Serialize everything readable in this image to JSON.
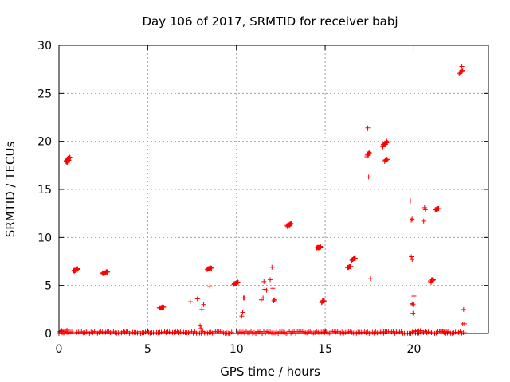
{
  "chart_data": {
    "type": "scatter",
    "title": "Day 106 of 2017, SRMTID for receiver babj",
    "xlabel": "GPS time / hours",
    "ylabel": "SRMTID / TECUs",
    "xlim": [
      0,
      24.2
    ],
    "ylim": [
      0,
      30
    ],
    "xticks": [
      0,
      5,
      10,
      15,
      20
    ],
    "yticks": [
      0,
      5,
      10,
      15,
      20,
      25,
      30
    ],
    "grid": true,
    "marker": "plus",
    "colors": {
      "series": "#ff0000",
      "grid": "#a0a0a0",
      "axis": "#000000"
    },
    "series": [
      {
        "name": "SRMTID",
        "clusters": [
          {
            "x0": 0.4,
            "x1": 0.62,
            "y0": 17.6,
            "y1": 18.5,
            "n": 26
          },
          {
            "x0": 0.82,
            "x1": 1.05,
            "y0": 6.4,
            "y1": 6.8,
            "n": 14
          },
          {
            "x0": 2.45,
            "x1": 2.75,
            "y0": 6.2,
            "y1": 6.5,
            "n": 12
          },
          {
            "x0": 5.65,
            "x1": 5.9,
            "y0": 2.6,
            "y1": 2.8,
            "n": 10
          },
          {
            "x0": 8.35,
            "x1": 8.6,
            "y0": 6.6,
            "y1": 6.9,
            "n": 10
          },
          {
            "x0": 9.85,
            "x1": 10.1,
            "y0": 5.1,
            "y1": 5.4,
            "n": 10
          },
          {
            "x0": 12.85,
            "x1": 13.1,
            "y0": 11.1,
            "y1": 11.5,
            "n": 12
          },
          {
            "x0": 14.5,
            "x1": 14.75,
            "y0": 8.8,
            "y1": 9.1,
            "n": 12
          },
          {
            "x0": 14.8,
            "x1": 14.95,
            "y0": 3.2,
            "y1": 3.5,
            "n": 8
          },
          {
            "x0": 16.25,
            "x1": 16.45,
            "y0": 6.8,
            "y1": 7.1,
            "n": 8
          },
          {
            "x0": 16.5,
            "x1": 16.7,
            "y0": 7.6,
            "y1": 7.9,
            "n": 8
          },
          {
            "x0": 17.35,
            "x1": 17.5,
            "y0": 18.2,
            "y1": 19.0,
            "n": 8
          },
          {
            "x0": 18.25,
            "x1": 18.5,
            "y0": 19.4,
            "y1": 20.2,
            "n": 16
          },
          {
            "x0": 18.35,
            "x1": 18.5,
            "y0": 17.9,
            "y1": 18.2,
            "n": 6
          },
          {
            "x0": 20.9,
            "x1": 21.1,
            "y0": 5.2,
            "y1": 5.8,
            "n": 10
          },
          {
            "x0": 21.2,
            "x1": 21.4,
            "y0": 12.8,
            "y1": 13.1,
            "n": 8
          },
          {
            "x0": 22.55,
            "x1": 22.75,
            "y0": 27.0,
            "y1": 27.4,
            "n": 6
          }
        ],
        "points": [
          [
            0.15,
            0.3
          ],
          [
            0.35,
            0.2
          ],
          [
            0.55,
            0.1
          ],
          [
            7.4,
            3.3
          ],
          [
            7.8,
            3.6
          ],
          [
            7.95,
            0.8
          ],
          [
            8.0,
            0.5
          ],
          [
            8.05,
            2.5
          ],
          [
            8.15,
            3.0
          ],
          [
            8.5,
            4.9
          ],
          [
            10.3,
            1.8
          ],
          [
            10.35,
            2.2
          ],
          [
            10.4,
            3.7
          ],
          [
            10.45,
            3.7
          ],
          [
            11.4,
            3.5
          ],
          [
            11.5,
            3.7
          ],
          [
            11.55,
            5.4
          ],
          [
            11.6,
            4.6
          ],
          [
            11.7,
            4.5
          ],
          [
            11.9,
            5.6
          ],
          [
            12.0,
            6.9
          ],
          [
            12.05,
            4.7
          ],
          [
            12.1,
            3.4
          ],
          [
            12.15,
            3.5
          ],
          [
            17.4,
            21.4
          ],
          [
            17.45,
            16.3
          ],
          [
            17.55,
            5.7
          ],
          [
            19.8,
            13.8
          ],
          [
            19.85,
            11.8
          ],
          [
            19.9,
            11.9
          ],
          [
            19.85,
            8.0
          ],
          [
            19.9,
            7.7
          ],
          [
            20.0,
            3.9
          ],
          [
            19.95,
            3.0
          ],
          [
            19.9,
            3.1
          ],
          [
            19.95,
            2.1
          ],
          [
            20.6,
            13.1
          ],
          [
            20.55,
            11.7
          ],
          [
            20.65,
            12.9
          ],
          [
            22.7,
            27.8
          ],
          [
            22.8,
            2.5
          ],
          [
            22.75,
            1.0
          ],
          [
            22.85,
            1.0
          ]
        ],
        "baseline": {
          "y_min": 0.0,
          "y_max": 0.35,
          "step": 0.09,
          "segments": [
            [
              0.0,
              0.8
            ],
            [
              1.0,
              9.8
            ],
            [
              10.1,
              22.9
            ]
          ],
          "bumps": [
            [
              0.0,
              0.5,
              0.35
            ],
            [
              20.0,
              20.5,
              0.3
            ],
            [
              21.5,
              22.0,
              0.25
            ],
            [
              18.2,
              18.5,
              0.2
            ]
          ]
        }
      }
    ]
  }
}
